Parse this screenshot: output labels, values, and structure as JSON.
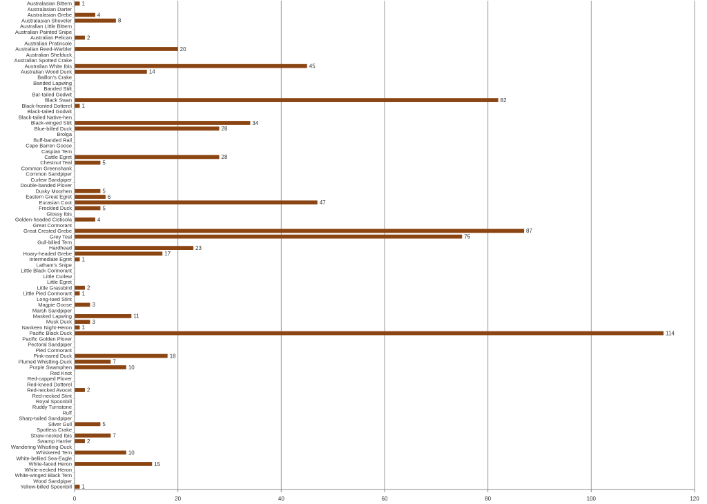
{
  "chart_data": {
    "type": "bar",
    "orientation": "horizontal",
    "title": "",
    "xlabel": "",
    "ylabel": "",
    "xlim": [
      0,
      120
    ],
    "x_ticks": [
      0,
      20,
      40,
      60,
      80,
      100,
      120
    ],
    "grid": "vertical major gridlines",
    "legend": "none",
    "bar_color": "#8B4513",
    "categories": [
      "Australasian Bittern",
      "Australasian Darter",
      "Australasian Grebe",
      "Australasian Shoveler",
      "Australian Little Bittern",
      "Australian Painted Snipe",
      "Australian Pelican",
      "Australian Pratincole",
      "Australian Reed-Warbler",
      "Australian Shelduck",
      "Australian Spotted Crake",
      "Australian White Ibis",
      "Australian Wood Duck",
      "Baillon's Crake",
      "Banded Lapwing",
      "Banded Stilt",
      "Bar-tailed Godwit",
      "Black Swan",
      "Black-fronted Dotterel",
      "Black-tailed Godwit",
      "Black-tailed Native-hen",
      "Black-winged Stilt",
      "Blue-billed Duck",
      "Brolga",
      "Buff-banded Rail",
      "Cape Barren Goose",
      "Caspian Tern",
      "Cattle Egret",
      "Chestnut Teal",
      "Common Greenshank",
      "Common Sandpiper",
      "Curlew Sandpiper",
      "Double-banded Plover",
      "Dusky Moorhen",
      "Eastern Great Egret",
      "Eurasian Coot",
      "Freckled Duck",
      "Glossy Ibis",
      "Golden-headed Cisticola",
      "Great Cormorant",
      "Great Crested Grebe",
      "Grey Teal",
      "Gull-billed Tern",
      "Hardhead",
      "Hoary-headed Grebe",
      "Intermediate Egret",
      "Latham's Snipe",
      "Little Black Cormorant",
      "Little Curlew",
      "Little Egret",
      "Little Grassbird",
      "Little Pied Cormorant",
      "Long-toed Stint",
      "Magpie Goose",
      "Marsh Sandpiper",
      "Masked Lapwing",
      "Musk Duck",
      "Nankeen Night-Heron",
      "Pacific Black Duck",
      "Pacific Golden Plover",
      "Pectoral Sandpiper",
      "Pied Cormorant",
      "Pink-eared Duck",
      "Plumed Whistling-Duck",
      "Purple Swamphen",
      "Red Knot",
      "Red-capped Plover",
      "Red-kneed Dotterel",
      "Red-necked Avocet",
      "Red-necked Stint",
      "Royal Spoonbill",
      "Ruddy Turnstone",
      "Ruff",
      "Sharp-tailed Sandpiper",
      "Silver Gull",
      "Spotless Crake",
      "Straw-necked Ibis",
      "Swamp Harrier",
      "Wandering Whistling-Duck",
      "Whiskered Tern",
      "White-bellied Sea-Eagle",
      "White-faced Heron",
      "White-necked Heron",
      "White-winged Black Tern",
      "Wood Sandpiper",
      "Yellow-billed Spoonbill"
    ],
    "values": [
      1,
      0,
      4,
      8,
      0,
      0,
      2,
      0,
      20,
      0,
      0,
      45,
      14,
      0,
      0,
      0,
      0,
      82,
      1,
      0,
      0,
      34,
      28,
      0,
      0,
      0,
      0,
      28,
      5,
      0,
      0,
      0,
      0,
      5,
      6,
      47,
      5,
      0,
      4,
      0,
      87,
      75,
      0,
      23,
      17,
      1,
      0,
      0,
      0,
      0,
      2,
      1,
      0,
      3,
      0,
      11,
      3,
      1,
      114,
      0,
      0,
      0,
      18,
      7,
      10,
      0,
      0,
      0,
      2,
      0,
      0,
      0,
      0,
      0,
      5,
      0,
      7,
      2,
      0,
      10,
      0,
      15,
      0,
      0,
      0,
      1
    ]
  }
}
